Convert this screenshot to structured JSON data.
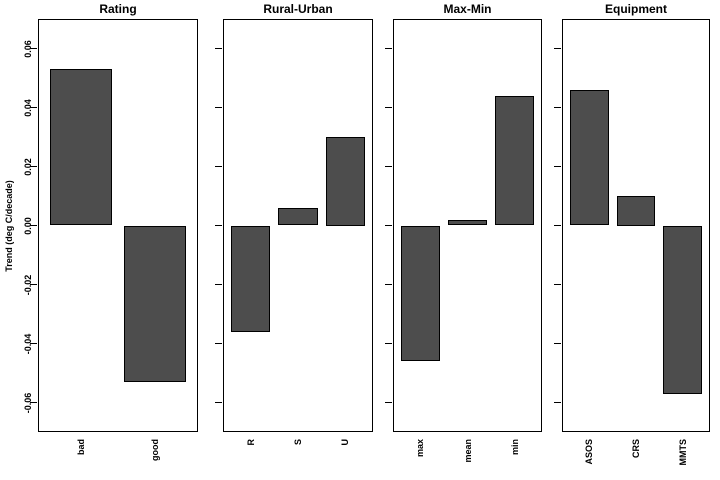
{
  "figure": {
    "background": "#ffffff",
    "colors": {
      "bar_fill": "#4d4d4d",
      "bar_border": "#000000",
      "axis": "#000000",
      "text": "#000000"
    },
    "y_axis": {
      "label": "Trend (deg C/decade)",
      "tick_values": [
        0.06,
        0.04,
        0.02,
        0,
        -0.02,
        -0.04,
        -0.06
      ],
      "tick_labels": [
        "0.06",
        "0.04",
        "0.02",
        "0.00",
        "-0.02",
        "-0.04",
        "-0.06"
      ]
    }
  },
  "chart_data": [
    {
      "type": "bar",
      "title": "Rating",
      "categories": [
        "bad",
        "good"
      ],
      "values": [
        0.053,
        -0.053
      ],
      "ylabel": "Trend (deg C/decade)",
      "ylim": [
        -0.07,
        0.07
      ],
      "grid": false,
      "legend": null
    },
    {
      "type": "bar",
      "title": "Rural-Urban",
      "categories": [
        "R",
        "S",
        "U"
      ],
      "values": [
        -0.036,
        0.006,
        0.03
      ],
      "ylabel": "",
      "ylim": [
        -0.07,
        0.07
      ],
      "grid": false,
      "legend": null
    },
    {
      "type": "bar",
      "title": "Max-Min",
      "categories": [
        "max",
        "mean",
        "min"
      ],
      "values": [
        -0.046,
        0.002,
        0.044
      ],
      "ylabel": "",
      "ylim": [
        -0.07,
        0.07
      ],
      "grid": false,
      "legend": null
    },
    {
      "type": "bar",
      "title": "Equipment",
      "categories": [
        "ASOS",
        "CRS",
        "MMTS"
      ],
      "values": [
        0.046,
        0.01,
        -0.057
      ],
      "ylabel": "",
      "ylim": [
        -0.07,
        0.07
      ],
      "grid": false,
      "legend": null
    }
  ]
}
